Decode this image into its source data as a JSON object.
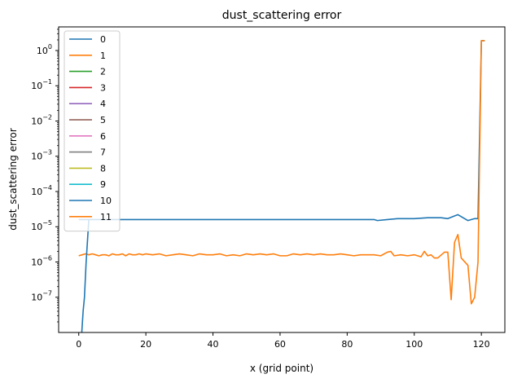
{
  "chart_data": {
    "type": "line",
    "title": "dust_scattering error",
    "xlabel": "x (grid point)",
    "ylabel": "dust_scattering error",
    "xlim": [
      -6,
      127
    ],
    "ylim_log10": [
      -8,
      0.67
    ],
    "yscale": "log",
    "x_ticks": [
      0,
      20,
      40,
      60,
      80,
      100,
      120
    ],
    "x_tick_labels": [
      "0",
      "20",
      "40",
      "60",
      "80",
      "100",
      "120"
    ],
    "y_ticks_log10": [
      -7,
      -6,
      -5,
      -4,
      -3,
      -2,
      -1,
      0
    ],
    "y_tick_bases": [
      "10",
      "10",
      "10",
      "10",
      "10",
      "10",
      "10",
      "10"
    ],
    "y_tick_exponents": [
      "−7",
      "−6",
      "−5",
      "−4",
      "−3",
      "−2",
      "−1",
      "0"
    ],
    "grid": false,
    "legend_position": "top-left",
    "series": [
      {
        "name": "0",
        "color": "#1f77b4",
        "x": [],
        "y": []
      },
      {
        "name": "1",
        "color": "#ff7f0e",
        "x": [],
        "y": []
      },
      {
        "name": "2",
        "color": "#2ca02c",
        "x": [],
        "y": []
      },
      {
        "name": "3",
        "color": "#d62728",
        "x": [],
        "y": []
      },
      {
        "name": "4",
        "color": "#9467bd",
        "x": [],
        "y": []
      },
      {
        "name": "5",
        "color": "#8c564b",
        "x": [],
        "y": []
      },
      {
        "name": "6",
        "color": "#e377c2",
        "x": [],
        "y": []
      },
      {
        "name": "7",
        "color": "#7f7f7f",
        "x": [],
        "y": []
      },
      {
        "name": "8",
        "color": "#bcbd22",
        "x": [],
        "y": []
      },
      {
        "name": "9",
        "color": "#17becf",
        "x": [],
        "y": []
      },
      {
        "name": "10",
        "color": "#1f77b4",
        "x": [
          0,
          10,
          20,
          30,
          40,
          50,
          60,
          70,
          80,
          88,
          89,
          92,
          95,
          100,
          104,
          108,
          110,
          113,
          116,
          118,
          119,
          120,
          121
        ],
        "y": [
          1.6e-05,
          1.6e-05,
          1.6e-05,
          1.6e-05,
          1.6e-05,
          1.6e-05,
          1.6e-05,
          1.6e-05,
          1.6e-05,
          1.6e-05,
          1.5e-05,
          1.6e-05,
          1.7e-05,
          1.7e-05,
          1.8e-05,
          1.8e-05,
          1.7e-05,
          2.2e-05,
          1.5e-05,
          1.7e-05,
          1.7e-05,
          1.9,
          1.9
        ]
      },
      {
        "name": "11",
        "color": "#ff7f0e",
        "x": [
          0,
          1,
          2,
          3,
          4,
          5,
          6,
          7,
          8,
          9,
          10,
          11,
          12,
          13,
          14,
          15,
          16,
          17,
          18,
          19,
          20,
          22,
          24,
          26,
          28,
          30,
          32,
          34,
          36,
          38,
          40,
          42,
          44,
          46,
          48,
          50,
          52,
          54,
          56,
          58,
          60,
          62,
          64,
          66,
          68,
          70,
          72,
          74,
          76,
          78,
          80,
          82,
          84,
          86,
          88,
          90,
          92,
          93,
          94,
          96,
          98,
          100,
          102,
          103,
          104,
          105,
          106,
          107,
          109,
          110,
          111,
          112,
          113,
          114,
          116,
          117,
          118,
          119,
          120,
          121
        ],
        "y": [
          1.5e-06,
          1.6e-06,
          1.7e-06,
          1.6e-06,
          1.7e-06,
          1.6e-06,
          1.5e-06,
          1.6e-06,
          1.6e-06,
          1.5e-06,
          1.7e-06,
          1.6e-06,
          1.6e-06,
          1.7e-06,
          1.5e-06,
          1.7e-06,
          1.6e-06,
          1.6e-06,
          1.7e-06,
          1.6e-06,
          1.7e-06,
          1.6e-06,
          1.7e-06,
          1.5e-06,
          1.6e-06,
          1.7e-06,
          1.6e-06,
          1.5e-06,
          1.7e-06,
          1.6e-06,
          1.6e-06,
          1.7e-06,
          1.5e-06,
          1.6e-06,
          1.5e-06,
          1.7e-06,
          1.6e-06,
          1.7e-06,
          1.6e-06,
          1.7e-06,
          1.5e-06,
          1.5e-06,
          1.7e-06,
          1.6e-06,
          1.7e-06,
          1.6e-06,
          1.7e-06,
          1.6e-06,
          1.6e-06,
          1.7e-06,
          1.6e-06,
          1.5e-06,
          1.6e-06,
          1.6e-06,
          1.6e-06,
          1.5e-06,
          1.9e-06,
          2e-06,
          1.5e-06,
          1.6e-06,
          1.5e-06,
          1.6e-06,
          1.4e-06,
          2e-06,
          1.5e-06,
          1.6e-06,
          1.3e-06,
          1.3e-06,
          1.9e-06,
          1.9e-06,
          8.5e-08,
          3.6e-06,
          6e-06,
          1.3e-06,
          8e-07,
          6.5e-08,
          1e-07,
          1e-06,
          1.9,
          1.9
        ]
      },
      {
        "name": "10",
        "color": "#1f77b4",
        "x": [
          0.5,
          0.9,
          1.3,
          1.7,
          2.2,
          3
        ],
        "y": [
          3e-09,
          1e-08,
          4e-08,
          1e-07,
          1e-06,
          1.6e-05
        ]
      }
    ]
  }
}
